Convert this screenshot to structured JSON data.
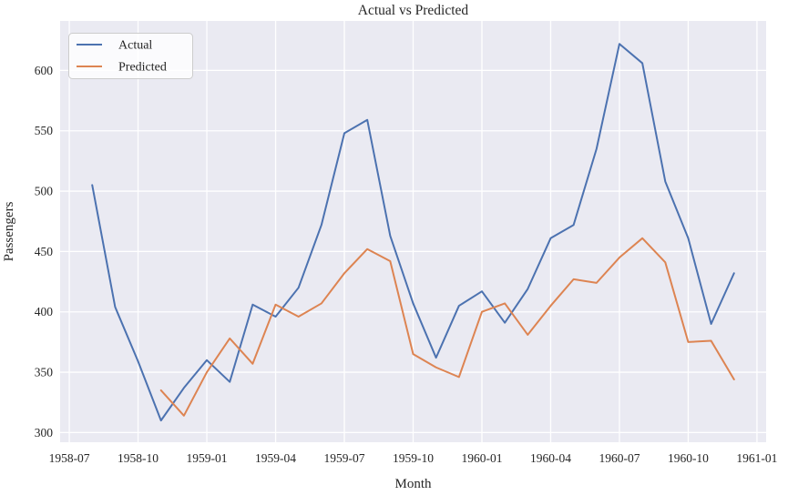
{
  "chart_data": {
    "type": "line",
    "title": "Actual vs Predicted",
    "xlabel": "Month",
    "ylabel": "Passengers",
    "grid": true,
    "legend_position": "upper left",
    "background_color": "#eaeaf2",
    "grid_color": "#ffffff",
    "text_color": "#262626",
    "x_tick_labels": [
      "1958-07",
      "1958-10",
      "1959-01",
      "1959-04",
      "1959-07",
      "1959-10",
      "1960-01",
      "1960-04",
      "1960-07",
      "1960-10",
      "1961-01"
    ],
    "y_ticks": [
      300,
      350,
      400,
      450,
      500,
      550,
      600
    ],
    "ylim": [
      292,
      641
    ],
    "x_margin_months": 1.4,
    "series": [
      {
        "name": "Actual",
        "color": "#4c72b0",
        "start_month": "1958-08",
        "values": [
          505,
          404,
          359,
          310,
          337,
          360,
          342,
          406,
          396,
          420,
          472,
          548,
          559,
          463,
          407,
          362,
          405,
          417,
          391,
          419,
          461,
          472,
          535,
          622,
          606,
          508,
          461,
          390,
          432
        ]
      },
      {
        "name": "Predicted",
        "color": "#dd8452",
        "start_month": "1958-11",
        "values": [
          335,
          314,
          350,
          378,
          357,
          406,
          396,
          407,
          432,
          452,
          442,
          365,
          354,
          346,
          400,
          407,
          381,
          405,
          427,
          424,
          445,
          461,
          441,
          375,
          376,
          344
        ]
      }
    ]
  }
}
